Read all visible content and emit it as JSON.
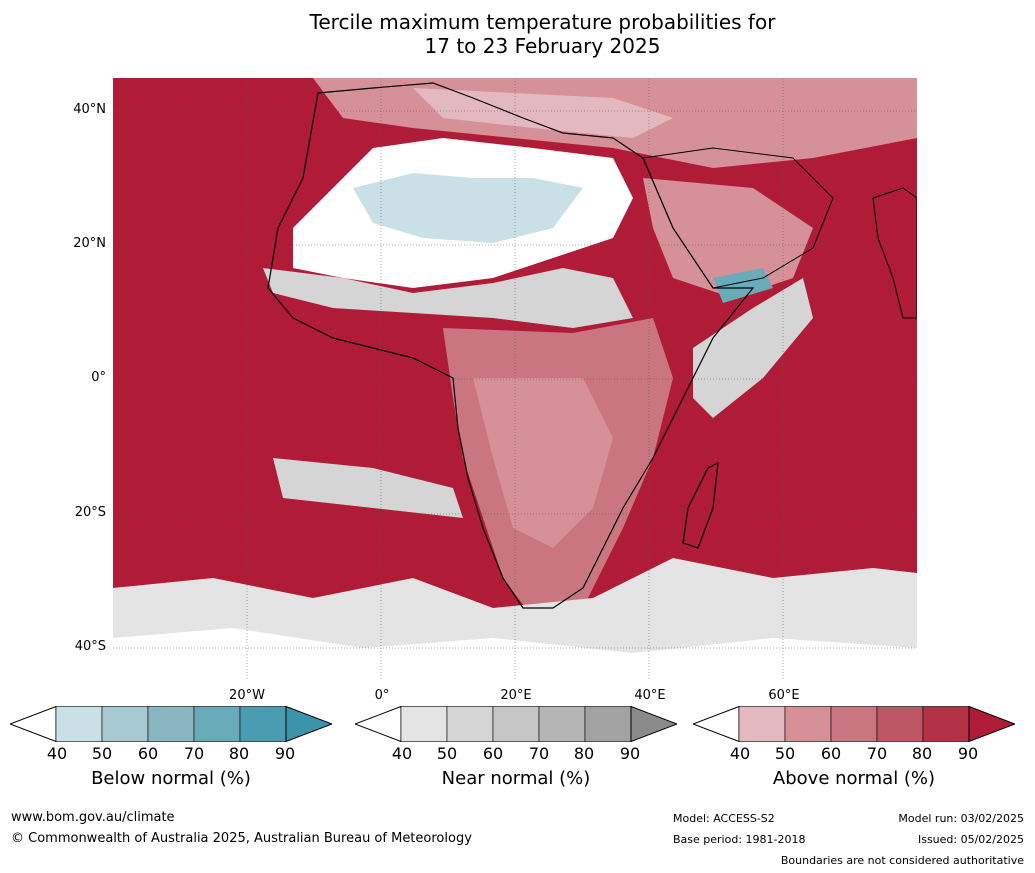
{
  "title_line1": "Tercile maximum temperature probabilities for",
  "title_line2": "17 to 23 February 2025",
  "lat_labels": [
    "40°N",
    "20°N",
    "0°",
    "20°S",
    "40°S"
  ],
  "lon_labels": [
    "20°W",
    "0°",
    "20°E",
    "40°E",
    "60°E"
  ],
  "colorbars": [
    {
      "title": "Below normal (%)",
      "ticks": [
        "40",
        "50",
        "60",
        "70",
        "80",
        "90"
      ],
      "colors": [
        "#ffffff",
        "#c8e0e6",
        "#a7c9d0",
        "#8ab6c2",
        "#6aabba",
        "#4a9db0",
        "#3a95ab"
      ]
    },
    {
      "title": "Near normal (%)",
      "ticks": [
        "40",
        "50",
        "60",
        "70",
        "80",
        "90"
      ],
      "colors": [
        "#ffffff",
        "#e4e4e4",
        "#d5d5d5",
        "#c6c6c6",
        "#b5b5b5",
        "#a2a2a2",
        "#8a8a8a"
      ]
    },
    {
      "title": "Above normal (%)",
      "ticks": [
        "40",
        "50",
        "60",
        "70",
        "80",
        "90"
      ],
      "colors": [
        "#ffffff",
        "#e3b9bf",
        "#d69098",
        "#c97681",
        "#bf5667",
        "#b53246",
        "#b01c38"
      ]
    }
  ],
  "footer": {
    "website": "www.bom.gov.au/climate",
    "copyright": "© Commonwealth of Australia 2025, Australian Bureau of Meteorology",
    "model": "Model: ACCESS-S2",
    "base_period": "Base period: 1981-2018",
    "model_run": "Model run: 03/02/2025",
    "issued": "Issued: 05/02/2025",
    "disclaimer": "Boundaries are not considered authoritative"
  }
}
